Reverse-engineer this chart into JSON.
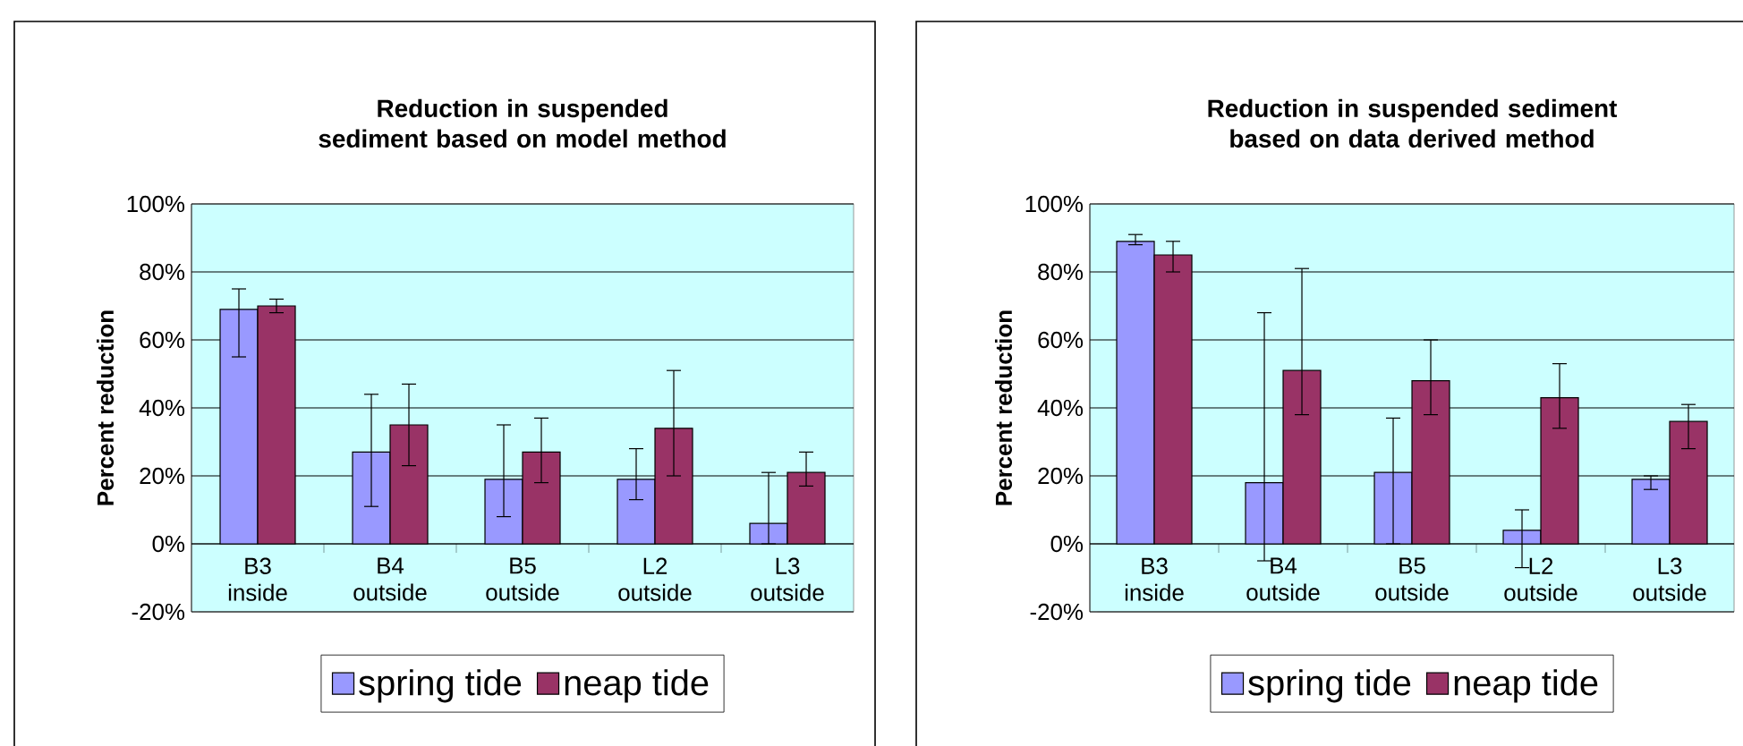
{
  "chart_data": [
    {
      "type": "bar",
      "title": "Reduction in suspended sediment based on model method",
      "ylabel": "Percent reduction",
      "categories": [
        "B3 inside",
        "B4 outside",
        "B5 outside",
        "L2 outside",
        "L3 outside"
      ],
      "series": [
        {
          "name": "spring tide",
          "color": "#9999ff",
          "values": [
            69,
            27,
            19,
            19,
            6
          ],
          "errors": [
            [
              55,
              75
            ],
            [
              11,
              44
            ],
            [
              8,
              35
            ],
            [
              13,
              28
            ],
            [
              0,
              21
            ]
          ]
        },
        {
          "name": "neap tide",
          "color": "#993366",
          "values": [
            70,
            35,
            27,
            34,
            21
          ],
          "errors": [
            [
              68,
              72
            ],
            [
              23,
              47
            ],
            [
              18,
              37
            ],
            [
              20,
              51
            ],
            [
              17,
              27
            ]
          ]
        }
      ],
      "ylim": [
        -20,
        100
      ],
      "yticks": [
        {
          "value": -20,
          "label": "-20%"
        },
        {
          "value": 0,
          "label": "0%"
        },
        {
          "value": 20,
          "label": "20%"
        },
        {
          "value": 40,
          "label": "40%"
        },
        {
          "value": 60,
          "label": "60%"
        },
        {
          "value": 80,
          "label": "80%"
        },
        {
          "value": 100,
          "label": "100%"
        }
      ],
      "grid": "y",
      "legend": "bottom"
    },
    {
      "type": "bar",
      "title": "Reduction in suspended sediment based on data derived method",
      "ylabel": "Percent reduction",
      "categories": [
        "B3 inside",
        "B4 outside",
        "B5 outside",
        "L2 outside",
        "L3 outside"
      ],
      "series": [
        {
          "name": "spring tide",
          "color": "#9999ff",
          "values": [
            89,
            18,
            21,
            4,
            19
          ],
          "errors": [
            [
              88,
              91
            ],
            [
              -5,
              68
            ],
            [
              0,
              37
            ],
            [
              -7,
              10
            ],
            [
              16,
              20
            ]
          ]
        },
        {
          "name": "neap tide",
          "color": "#993366",
          "values": [
            85,
            51,
            48,
            43,
            36
          ],
          "errors": [
            [
              80,
              89
            ],
            [
              38,
              81
            ],
            [
              38,
              60
            ],
            [
              34,
              53
            ],
            [
              28,
              41
            ]
          ]
        }
      ],
      "ylim": [
        -20,
        100
      ],
      "yticks": [
        {
          "value": -20,
          "label": "-20%"
        },
        {
          "value": 0,
          "label": "0%"
        },
        {
          "value": 20,
          "label": "20%"
        },
        {
          "value": 40,
          "label": "40%"
        },
        {
          "value": 60,
          "label": "60%"
        },
        {
          "value": 80,
          "label": "80%"
        },
        {
          "value": 100,
          "label": "100%"
        }
      ],
      "grid": "y",
      "legend": "bottom"
    }
  ]
}
